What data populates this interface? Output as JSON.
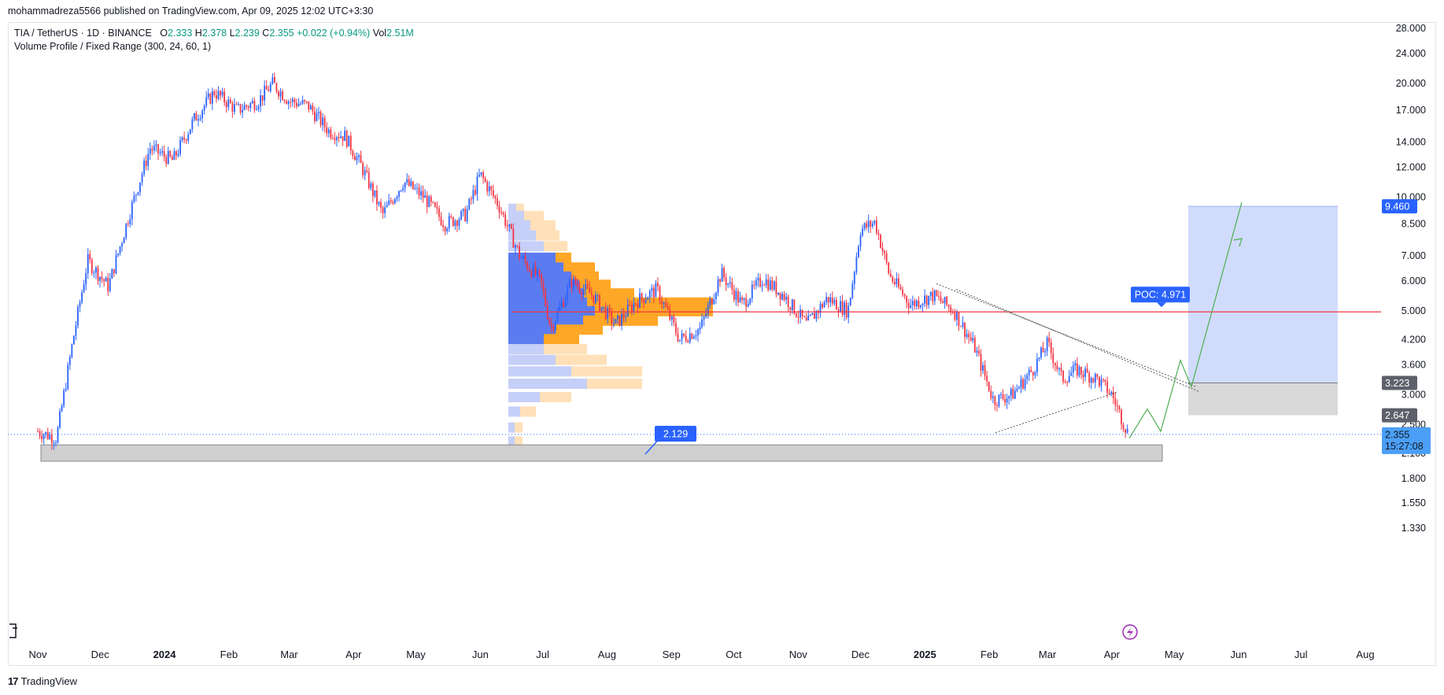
{
  "header": {
    "published": "mohammadreza5566 published on TradingView.com, Apr 09, 2025 12:02 UTC+3:30"
  },
  "legend": {
    "symbol": "TIA / TetherUS · 1D · BINANCE",
    "o_label": "O",
    "o": "2.333",
    "h_label": "H",
    "h": "2.378",
    "l_label": "L",
    "l": "2.239",
    "c_label": "C",
    "c": "2.355",
    "change": "+0.022 (+0.94%)",
    "vol_label": "Vol",
    "vol": "2.51M",
    "indicator": "Volume Profile / Fixed Range (300, 24, 60, 1)"
  },
  "footer": {
    "brand": "TradingView"
  },
  "colors": {
    "up": "#2962ff",
    "down": "#f23645",
    "poc": "#f23645",
    "vp_up": "#5b7cf0",
    "vp_down": "#ffa726",
    "target_box": "#c9d6fb",
    "stop_box": "#d9d9d9"
  },
  "chart_data": {
    "type": "candlestick",
    "scale": "log",
    "y_ticks": [
      "28.000",
      "24.000",
      "20.000",
      "17.000",
      "14.000",
      "12.000",
      "10.000",
      "8.500",
      "7.000",
      "6.000",
      "5.000",
      "4.200",
      "3.600",
      "3.000",
      "2.500",
      "2.100",
      "1.800",
      "1.550",
      "1.330"
    ],
    "x_ticks": [
      {
        "label": "Nov",
        "bold": false
      },
      {
        "label": "Dec",
        "bold": false
      },
      {
        "label": "2024",
        "bold": true
      },
      {
        "label": "Feb",
        "bold": false
      },
      {
        "label": "Mar",
        "bold": false
      },
      {
        "label": "Apr",
        "bold": false
      },
      {
        "label": "May",
        "bold": false
      },
      {
        "label": "Jun",
        "bold": false
      },
      {
        "label": "Jul",
        "bold": false
      },
      {
        "label": "Aug",
        "bold": false
      },
      {
        "label": "Sep",
        "bold": false
      },
      {
        "label": "Oct",
        "bold": false
      },
      {
        "label": "Nov",
        "bold": false
      },
      {
        "label": "Dec",
        "bold": false
      },
      {
        "label": "2025",
        "bold": true
      },
      {
        "label": "Feb",
        "bold": false
      },
      {
        "label": "Mar",
        "bold": false
      },
      {
        "label": "Apr",
        "bold": false
      },
      {
        "label": "May",
        "bold": false
      },
      {
        "label": "Jun",
        "bold": false
      },
      {
        "label": "Jul",
        "bold": false
      },
      {
        "label": "Aug",
        "bold": false
      }
    ],
    "price_path": [
      [
        "2023-11-01",
        2.4
      ],
      [
        "2023-11-10",
        2.3
      ],
      [
        "2023-11-18",
        4.2
      ],
      [
        "2023-11-25",
        6.8
      ],
      [
        "2023-12-05",
        5.8
      ],
      [
        "2023-12-15",
        9.0
      ],
      [
        "2023-12-25",
        13.5
      ],
      [
        "2024-01-05",
        12.5
      ],
      [
        "2024-01-15",
        16.0
      ],
      [
        "2024-01-25",
        19.0
      ],
      [
        "2024-02-05",
        17.0
      ],
      [
        "2024-02-15",
        18.0
      ],
      [
        "2024-02-22",
        20.0
      ],
      [
        "2024-03-01",
        18.0
      ],
      [
        "2024-03-10",
        17.5
      ],
      [
        "2024-03-20",
        15.0
      ],
      [
        "2024-03-28",
        14.5
      ],
      [
        "2024-04-05",
        12.0
      ],
      [
        "2024-04-15",
        9.0
      ],
      [
        "2024-04-25",
        11.0
      ],
      [
        "2024-05-05",
        10.0
      ],
      [
        "2024-05-15",
        8.5
      ],
      [
        "2024-05-25",
        9.0
      ],
      [
        "2024-06-01",
        11.5
      ],
      [
        "2024-06-10",
        9.5
      ],
      [
        "2024-06-20",
        7.0
      ],
      [
        "2024-06-30",
        6.0
      ],
      [
        "2024-07-05",
        4.5
      ],
      [
        "2024-07-15",
        6.0
      ],
      [
        "2024-07-25",
        5.5
      ],
      [
        "2024-08-05",
        4.6
      ],
      [
        "2024-08-15",
        5.3
      ],
      [
        "2024-08-25",
        5.7
      ],
      [
        "2024-09-05",
        4.2
      ],
      [
        "2024-09-15",
        4.5
      ],
      [
        "2024-09-25",
        6.3
      ],
      [
        "2024-10-05",
        5.2
      ],
      [
        "2024-10-15",
        6.1
      ],
      [
        "2024-10-25",
        5.5
      ],
      [
        "2024-11-05",
        4.6
      ],
      [
        "2024-11-15",
        5.4
      ],
      [
        "2024-11-25",
        5.0
      ],
      [
        "2024-12-01",
        8.2
      ],
      [
        "2024-12-08",
        8.6
      ],
      [
        "2024-12-15",
        6.2
      ],
      [
        "2024-12-25",
        5.2
      ],
      [
        "2025-01-05",
        5.5
      ],
      [
        "2025-01-15",
        5.0
      ],
      [
        "2025-01-25",
        4.0
      ],
      [
        "2025-02-03",
        2.9
      ],
      [
        "2025-02-12",
        3.0
      ],
      [
        "2025-02-22",
        3.5
      ],
      [
        "2025-03-01",
        4.1
      ],
      [
        "2025-03-08",
        3.3
      ],
      [
        "2025-03-15",
        3.5
      ],
      [
        "2025-03-25",
        3.3
      ],
      [
        "2025-04-01",
        3.0
      ],
      [
        "2025-04-09",
        2.355
      ]
    ],
    "annotations": {
      "poc_label": "POC: 4.971",
      "poc_price": 4.971,
      "low_label": "2.129",
      "last_price": "2.355",
      "countdown": "15:27:08",
      "target_price": "9.460",
      "entry_price": "3.223",
      "stop_price": "2.647"
    }
  }
}
